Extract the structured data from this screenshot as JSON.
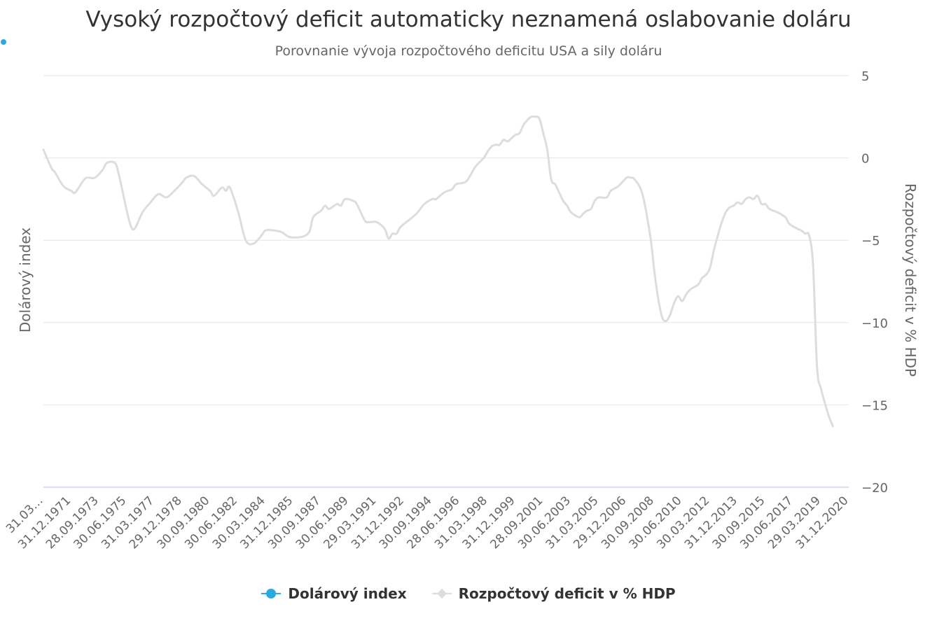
{
  "title": "Vysoký rozpočtový deficit automaticky neznamená oslabovanie doláru",
  "subtitle": "Porovnanie vývoja rozpočtového deficitu USA a sily doláru",
  "left_axis_title": "Dolárový index",
  "right_axis_title": "Rozpočtový deficit v % HDP",
  "colors": {
    "dollar_index": "#2aa8e0",
    "deficit": "#dddddd",
    "grid": "#e6e6e6",
    "axis_line": "#ccd6eb"
  },
  "legend": [
    {
      "label": "Dolárový index",
      "color": "#2aa8e0",
      "marker": "circle"
    },
    {
      "label": "Rozpočtový deficit v % HDP",
      "color": "#dddddd",
      "marker": "diamond"
    }
  ],
  "chart_data": {
    "type": "line",
    "x_tick_labels": [
      "31.03…",
      "31.12.1971",
      "28.09.1973",
      "30.06.1975",
      "31.03.1977",
      "29.12.1978",
      "30.09.1980",
      "30.06.1982",
      "30.03.1984",
      "31.12.1985",
      "30.09.1987",
      "30.06.1989",
      "29.03.1991",
      "31.12.1992",
      "30.09.1994",
      "28.06.1996",
      "31.03.1998",
      "31.12.1999",
      "28.09.2001",
      "30.06.2003",
      "31.03.2005",
      "29.12.2006",
      "30.09.2008",
      "30.06.2010",
      "30.03.2012",
      "31.12.2013",
      "30.09.2015",
      "30.06.2017",
      "29.03.2019",
      "31.12.2020"
    ],
    "x_range": [
      1970.25,
      2021.0
    ],
    "right_axis": {
      "label": "Rozpočtový deficit v % HDP",
      "ticks": [
        5,
        0,
        -5,
        -10,
        -15,
        -20
      ],
      "range": [
        -20,
        5
      ]
    },
    "left_axis": {
      "label": "Dolárový index"
    },
    "grid": true,
    "legend_position": "bottom-center",
    "series": [
      {
        "name": "Dolárový index",
        "axis": "left",
        "points": []
      },
      {
        "name": "Rozpočtový deficit v % HDP",
        "axis": "right",
        "points": [
          [
            1970.25,
            0.5
          ],
          [
            1970.75,
            -0.6
          ],
          [
            1971.0,
            -0.9
          ],
          [
            1971.5,
            -1.7
          ],
          [
            1972.0,
            -2.0
          ],
          [
            1972.25,
            -2.1
          ],
          [
            1972.75,
            -1.4
          ],
          [
            1973.0,
            -1.2
          ],
          [
            1973.5,
            -1.2
          ],
          [
            1974.0,
            -0.7
          ],
          [
            1974.25,
            -0.3
          ],
          [
            1974.75,
            -0.3
          ],
          [
            1975.0,
            -1.0
          ],
          [
            1975.5,
            -3.2
          ],
          [
            1975.75,
            -4.1
          ],
          [
            1976.0,
            -4.3
          ],
          [
            1976.5,
            -3.3
          ],
          [
            1977.0,
            -2.7
          ],
          [
            1977.5,
            -2.2
          ],
          [
            1978.0,
            -2.4
          ],
          [
            1978.5,
            -2.0
          ],
          [
            1979.0,
            -1.5
          ],
          [
            1979.25,
            -1.2
          ],
          [
            1979.75,
            -1.1
          ],
          [
            1980.25,
            -1.6
          ],
          [
            1980.75,
            -2.0
          ],
          [
            1981.0,
            -2.3
          ],
          [
            1981.5,
            -1.8
          ],
          [
            1981.75,
            -2.0
          ],
          [
            1982.0,
            -1.8
          ],
          [
            1982.5,
            -3.2
          ],
          [
            1983.0,
            -5.0
          ],
          [
            1983.5,
            -5.2
          ],
          [
            1984.0,
            -4.7
          ],
          [
            1984.25,
            -4.4
          ],
          [
            1984.75,
            -4.4
          ],
          [
            1985.25,
            -4.5
          ],
          [
            1985.75,
            -4.8
          ],
          [
            1986.5,
            -4.8
          ],
          [
            1987.0,
            -4.5
          ],
          [
            1987.25,
            -3.6
          ],
          [
            1987.75,
            -3.2
          ],
          [
            1988.0,
            -2.9
          ],
          [
            1988.25,
            -3.1
          ],
          [
            1988.75,
            -2.8
          ],
          [
            1989.0,
            -2.9
          ],
          [
            1989.25,
            -2.5
          ],
          [
            1989.75,
            -2.6
          ],
          [
            1990.0,
            -2.8
          ],
          [
            1990.5,
            -3.8
          ],
          [
            1990.75,
            -3.9
          ],
          [
            1991.25,
            -3.9
          ],
          [
            1991.75,
            -4.3
          ],
          [
            1992.0,
            -4.9
          ],
          [
            1992.25,
            -4.6
          ],
          [
            1992.5,
            -4.6
          ],
          [
            1992.75,
            -4.2
          ],
          [
            1993.25,
            -3.8
          ],
          [
            1993.75,
            -3.4
          ],
          [
            1994.0,
            -3.1
          ],
          [
            1994.25,
            -2.8
          ],
          [
            1994.75,
            -2.5
          ],
          [
            1995.0,
            -2.5
          ],
          [
            1995.5,
            -2.1
          ],
          [
            1996.0,
            -1.9
          ],
          [
            1996.25,
            -1.6
          ],
          [
            1996.75,
            -1.5
          ],
          [
            1997.0,
            -1.3
          ],
          [
            1997.5,
            -0.5
          ],
          [
            1998.0,
            0.0
          ],
          [
            1998.25,
            0.4
          ],
          [
            1998.5,
            0.7
          ],
          [
            1998.75,
            0.8
          ],
          [
            1999.0,
            0.8
          ],
          [
            1999.25,
            1.1
          ],
          [
            1999.5,
            1.0
          ],
          [
            1999.75,
            1.2
          ],
          [
            2000.0,
            1.4
          ],
          [
            2000.25,
            1.5
          ],
          [
            2000.5,
            2.0
          ],
          [
            2000.75,
            2.3
          ],
          [
            2001.0,
            2.5
          ],
          [
            2001.25,
            2.5
          ],
          [
            2001.5,
            2.4
          ],
          [
            2001.75,
            1.5
          ],
          [
            2002.0,
            0.5
          ],
          [
            2002.25,
            -1.3
          ],
          [
            2002.5,
            -1.6
          ],
          [
            2002.75,
            -2.1
          ],
          [
            2003.0,
            -2.6
          ],
          [
            2003.25,
            -2.9
          ],
          [
            2003.5,
            -3.3
          ],
          [
            2004.0,
            -3.6
          ],
          [
            2004.25,
            -3.4
          ],
          [
            2004.5,
            -3.2
          ],
          [
            2004.75,
            -3.1
          ],
          [
            2005.0,
            -2.6
          ],
          [
            2005.25,
            -2.4
          ],
          [
            2005.75,
            -2.4
          ],
          [
            2006.0,
            -2.0
          ],
          [
            2006.5,
            -1.7
          ],
          [
            2007.0,
            -1.2
          ],
          [
            2007.25,
            -1.2
          ],
          [
            2007.5,
            -1.3
          ],
          [
            2008.0,
            -2.2
          ],
          [
            2008.5,
            -4.8
          ],
          [
            2008.75,
            -6.9
          ],
          [
            2009.0,
            -8.6
          ],
          [
            2009.25,
            -9.7
          ],
          [
            2009.5,
            -9.9
          ],
          [
            2009.75,
            -9.5
          ],
          [
            2010.0,
            -8.8
          ],
          [
            2010.25,
            -8.4
          ],
          [
            2010.5,
            -8.7
          ],
          [
            2010.75,
            -8.3
          ],
          [
            2011.0,
            -8.0
          ],
          [
            2011.5,
            -7.7
          ],
          [
            2011.75,
            -7.3
          ],
          [
            2012.0,
            -7.1
          ],
          [
            2012.25,
            -6.7
          ],
          [
            2012.5,
            -5.6
          ],
          [
            2012.75,
            -4.7
          ],
          [
            2013.0,
            -3.9
          ],
          [
            2013.25,
            -3.3
          ],
          [
            2013.5,
            -3.0
          ],
          [
            2013.75,
            -2.9
          ],
          [
            2014.0,
            -2.7
          ],
          [
            2014.25,
            -2.8
          ],
          [
            2014.5,
            -2.5
          ],
          [
            2014.75,
            -2.4
          ],
          [
            2015.0,
            -2.5
          ],
          [
            2015.25,
            -2.3
          ],
          [
            2015.5,
            -2.8
          ],
          [
            2015.75,
            -2.8
          ],
          [
            2016.0,
            -3.1
          ],
          [
            2016.5,
            -3.3
          ],
          [
            2017.0,
            -3.6
          ],
          [
            2017.25,
            -4.0
          ],
          [
            2017.75,
            -4.3
          ],
          [
            2018.0,
            -4.4
          ],
          [
            2018.25,
            -4.6
          ],
          [
            2018.5,
            -4.7
          ],
          [
            2018.75,
            -6.5
          ],
          [
            2019.0,
            -12.7
          ],
          [
            2019.25,
            -14.0
          ],
          [
            2019.5,
            -14.9
          ],
          [
            2019.75,
            -15.7
          ],
          [
            2020.0,
            -16.3
          ]
        ]
      }
    ]
  }
}
